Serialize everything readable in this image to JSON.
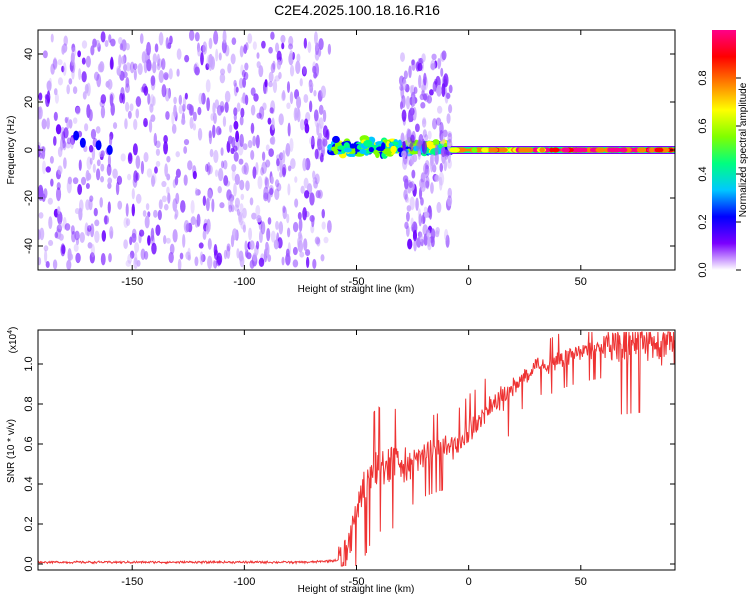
{
  "chart_data": [
    {
      "type": "heatmap",
      "title": "C2E4.2025.100.18.16.R16",
      "xlabel": "Height of straight line (km)",
      "ylabel": "Frequency (Hz)",
      "xlim": [
        -192,
        92
      ],
      "ylim": [
        -50,
        50
      ],
      "xticks": [
        "-150",
        "-100",
        "-50",
        "0",
        "50"
      ],
      "yticks": [
        "-40",
        "-20",
        "0",
        "20",
        "40"
      ],
      "colorbar": {
        "label": "Normalized spectral amplitude",
        "range": [
          0,
          1
        ],
        "ticks": [
          "0.0",
          "0.2",
          "0.4",
          "0.6",
          "0.8"
        ],
        "colors": [
          "#ffffff",
          "#7a00ff",
          "#0000ff",
          "#00c8ff",
          "#00ff80",
          "#80ff00",
          "#ffff00",
          "#ff8000",
          "#ff0000",
          "#ff0088"
        ]
      },
      "regions": [
        {
          "x": [
            -192,
            -62
          ],
          "freq_spread": 48,
          "amplitude": 0.1,
          "description_level": "noise"
        },
        {
          "x": [
            -62,
            -8
          ],
          "freq_center": 1,
          "freq_spread": 4,
          "amplitude": 0.45
        },
        {
          "x": [
            -30,
            -8
          ],
          "freq_spread": 40,
          "amplitude": 0.1
        },
        {
          "x": [
            -8,
            20
          ],
          "freq_center": 0,
          "freq_spread": 1,
          "amplitude": 0.8
        },
        {
          "x": [
            20,
            92
          ],
          "freq_center": 0,
          "freq_spread": 1,
          "amplitude": 1.0
        }
      ]
    },
    {
      "type": "line",
      "xlabel": "Height of straight line (km)",
      "ylabel": "SNR (10 * v/v)",
      "y_multiplier": "(x10",
      "y_multiplier_exp": "4",
      "xlim": [
        -192,
        92
      ],
      "ylim": [
        -0.03,
        1.17
      ],
      "xticks": [
        "-150",
        "-100",
        "-50",
        "0",
        "50"
      ],
      "yticks": [
        "0.0",
        "0.2",
        "0.4",
        "0.6",
        "0.8",
        "1.0"
      ],
      "series": [
        {
          "color": "#ee3333",
          "x": [
            -192,
            -170,
            -150,
            -130,
            -110,
            -90,
            -70,
            -58,
            -55,
            -52,
            -50,
            -48,
            -45,
            -42,
            -40,
            -38,
            -35,
            -32,
            -30,
            -28,
            -25,
            -20,
            -15,
            -10,
            -5,
            0,
            5,
            10,
            15,
            20,
            25,
            30,
            35,
            40,
            45,
            50,
            55,
            60,
            65,
            70,
            75,
            80,
            85,
            92
          ],
          "y": [
            0.01,
            0.01,
            0.01,
            0.01,
            0.01,
            0.01,
            0.01,
            0.02,
            0.07,
            0.17,
            0.28,
            0.35,
            0.42,
            0.5,
            0.52,
            0.5,
            0.55,
            0.5,
            0.48,
            0.5,
            0.52,
            0.56,
            0.58,
            0.6,
            0.6,
            0.68,
            0.72,
            0.8,
            0.84,
            0.88,
            0.95,
            1.01,
            1.0,
            1.03,
            1.05,
            1.07,
            1.08,
            1.09,
            1.1,
            1.1,
            1.11,
            1.11,
            1.11,
            1.12
          ]
        }
      ]
    }
  ]
}
